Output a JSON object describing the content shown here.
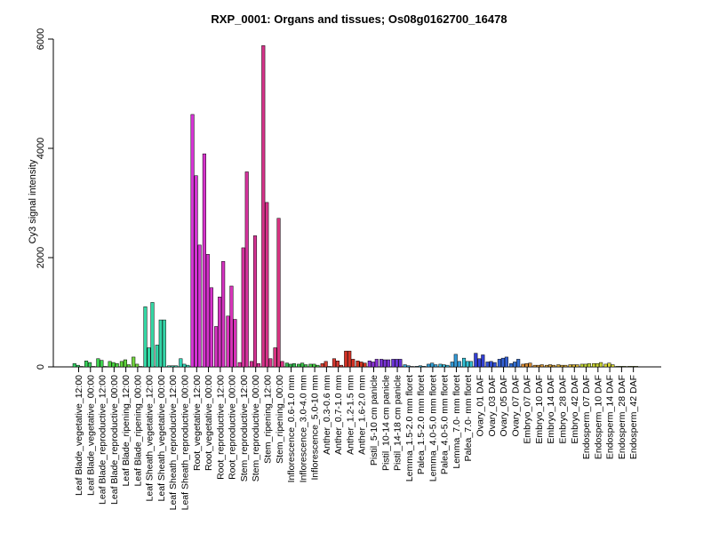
{
  "chart_data": {
    "type": "bar",
    "title": "RXP_0001: Organs and tissues; Os08g0162700_16478",
    "ylabel": "Cy3 signal intensity",
    "xlabel": "",
    "ylim": [
      0,
      6000
    ],
    "yticks": [
      0,
      2000,
      4000,
      6000
    ],
    "grid": false,
    "legend": "none",
    "categories": [
      "Leaf Blade_vegetative_12:00",
      "Leaf Blade_vegetative_00:00",
      "Leaf Blade_reproductive_12:00",
      "Leaf Blade_reproductive_00:00",
      "Leaf Blade_ripening_12:00",
      "Leaf Blade_ripening_00:00",
      "Leaf Sheath_vegetative_12:00",
      "Leaf Sheath_vegetative_00:00",
      "Leaf Sheath_reproductive_12:00",
      "Leaf Sheath_reproductive_00:00",
      "Root_vegetative_12:00",
      "Root_vegetative_00:00",
      "Root_reproductive_12:00",
      "Root_reproductive_00:00",
      "Stem_reproductive_12:00",
      "Stem_reproductive_00:00",
      "Stem_ripening_12:00",
      "Stem_ripening_00:00",
      "Inflorescence_0.6-1.0 mm",
      "Inflorescence_3.0-4.0 mm",
      "Inflorescence_5.0-10 mm",
      "Anther_0.3-0.6 mm",
      "Anther_0.7-1.0 mm",
      "Anther_1.2-1.5 mm",
      "Anther_1.6-2.0 mm",
      "Pistil_5-10 cm panicle",
      "Pistil_10-14 cm panicle",
      "Pistil_14-18 cm panicle",
      "Lemma_1.5-2.0 mm floret",
      "Palea_1.5-2.0 mm floret",
      "Lemma_4.0-5.0 mm floret",
      "Palea_4.0-5.0 mm floret",
      "Lemma_7.0- mm floret",
      "Palea_7.0- mm floret",
      "Ovary_01 DAF",
      "Ovary_03 DAF",
      "Ovary_05 DAF",
      "Ovary_07 DAF",
      "Embryo_07 DAF",
      "Embryo_10 DAF",
      "Embryo_14 DAF",
      "Embryo_28 DAF",
      "Embryo_42 DAF",
      "Endosperm_07 DAF",
      "Endosperm_10 DAF",
      "Endosperm_14 DAF",
      "Endosperm_28 DAF",
      "Endosperm_42 DAF"
    ],
    "values": [
      [
        60,
        30,
        0
      ],
      [
        110,
        80,
        0
      ],
      [
        150,
        120,
        0
      ],
      [
        100,
        80,
        60
      ],
      [
        100,
        130,
        40
      ],
      [
        180,
        50,
        0
      ],
      [
        1100,
        350,
        1180
      ],
      [
        400,
        860,
        860
      ],
      [
        20,
        20,
        20
      ],
      [
        150,
        50,
        30
      ],
      [
        4620,
        3500,
        2230
      ],
      [
        3900,
        2060,
        1450
      ],
      [
        740,
        1280,
        1930
      ],
      [
        930,
        1480,
        870
      ],
      [
        80,
        2180,
        3570
      ],
      [
        100,
        2400,
        60
      ],
      [
        5880,
        3010,
        150
      ],
      [
        350,
        2720,
        100
      ],
      [
        70,
        50,
        60
      ],
      [
        50,
        70,
        40
      ],
      [
        50,
        50,
        30
      ],
      [
        60,
        100,
        0
      ],
      [
        150,
        110,
        30
      ],
      [
        290,
        290,
        140
      ],
      [
        110,
        90,
        70
      ],
      [
        110,
        90,
        140
      ],
      [
        140,
        130,
        130
      ],
      [
        140,
        140,
        140
      ],
      [
        40,
        20,
        0
      ],
      [
        10,
        20,
        10
      ],
      [
        50,
        70,
        40
      ],
      [
        50,
        40,
        30
      ],
      [
        90,
        230,
        100
      ],
      [
        160,
        100,
        100
      ],
      [
        250,
        150,
        220
      ],
      [
        90,
        100,
        80
      ],
      [
        140,
        160,
        180
      ],
      [
        60,
        90,
        140
      ],
      [
        50,
        60,
        70
      ],
      [
        30,
        30,
        40
      ],
      [
        30,
        40,
        30
      ],
      [
        40,
        30,
        30
      ],
      [
        40,
        40,
        40
      ],
      [
        50,
        50,
        60
      ],
      [
        60,
        60,
        80
      ],
      [
        50,
        70,
        40
      ],
      [
        10,
        10,
        10
      ],
      [
        10,
        10,
        10
      ]
    ],
    "colors": [
      "#33d466",
      "#38d45c",
      "#3ed44f",
      "#4bd43f",
      "#5fd43a",
      "#73d63f",
      "#33d6a3",
      "#33d6a8",
      "#38d6b0",
      "#33d6b8",
      "#d633d6",
      "#d633cc",
      "#d633c2",
      "#d633b8",
      "#d6339e",
      "#d63394",
      "#d6338a",
      "#d63380",
      "#33b84f",
      "#3bc24a",
      "#45cc45",
      "#d64033",
      "#d63830",
      "#d63326",
      "#cc3320",
      "#8a33d6",
      "#7a33d6",
      "#6a33d6",
      "#33a8d6",
      "#33b0d6",
      "#33a0d6",
      "#33b8d6",
      "#3399d6",
      "#33c2d6",
      "#3340d6",
      "#3350d6",
      "#3360d6",
      "#3370d6",
      "#d68a33",
      "#d69433",
      "#d69e33",
      "#d6a833",
      "#d6b233",
      "#c2d633",
      "#ccd633",
      "#d6d633",
      "#a8d633",
      "#b8d633"
    ]
  }
}
